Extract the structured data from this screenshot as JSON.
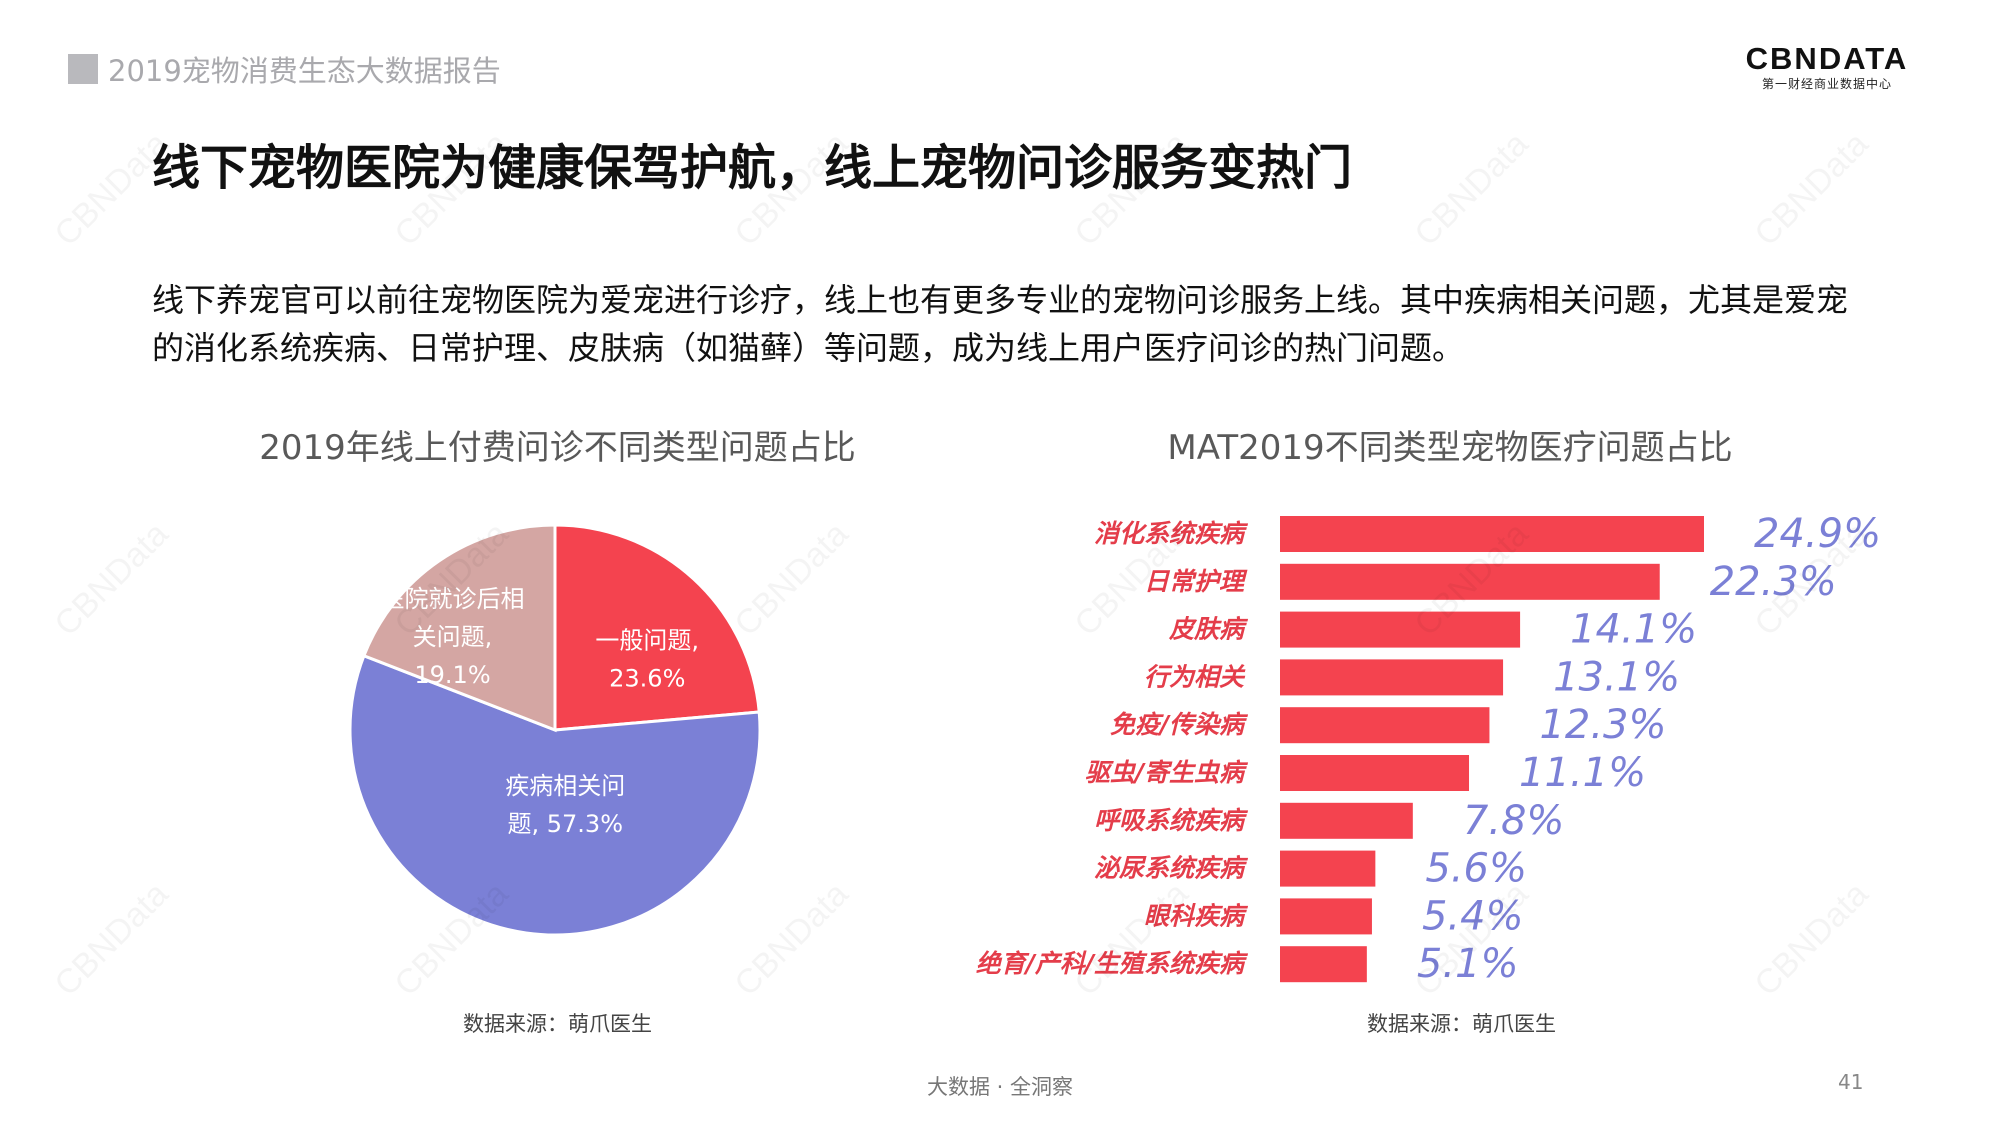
{
  "header": {
    "report_tag": "2019宠物消费生态大数据报告",
    "logo_brand": "CBNDATA",
    "logo_sub": "第一财经商业数据中心"
  },
  "title": "线下宠物医院为健康保驾护航，线上宠物问诊服务变热门",
  "intro": "线下养宠官可以前往宠物医院为爱宠进行诊疗，线上也有更多专业的宠物问诊服务上线。其中疾病相关问题，尤其是爱宠的消化系统疾病、日常护理、皮肤病（如猫藓）等问题，成为线上用户医疗问诊的热门问题。",
  "watermark": "CBNData",
  "footer": {
    "slogan": "大数据 · 全洞察",
    "page": "41"
  },
  "colors": {
    "pie": [
      "#f4434f",
      "#7b80d6",
      "#d4a6a3"
    ],
    "bar": "#f4434f",
    "bar_label": "#7b80d6",
    "category": "#e43d4a"
  },
  "chart_data": [
    {
      "type": "pie",
      "title": "2019年线上付费问诊不同类型问题占比",
      "source": "数据来源：萌爪医生",
      "slices": [
        {
          "label_lines": [
            "一般问题,",
            "23.6%"
          ],
          "value": 23.6
        },
        {
          "label_lines": [
            "疾病相关问",
            "题, 57.3%"
          ],
          "value": 57.3
        },
        {
          "label_lines": [
            "医院就诊后相",
            "关问题,",
            "19.1%"
          ],
          "value": 19.1
        }
      ],
      "start_angle_deg": 0,
      "direction": "clockwise"
    },
    {
      "type": "bar",
      "orientation": "horizontal",
      "title": "MAT2019不同类型宠物医疗问题占比",
      "source": "数据来源：萌爪医生",
      "categories": [
        "消化系统疾病",
        "日常护理",
        "皮肤病",
        "行为相关",
        "免疫/传染病",
        "驱虫/寄生虫病",
        "呼吸系统疾病",
        "泌尿系统疾病",
        "眼科疾病",
        "绝育/产科/生殖系统疾病"
      ],
      "values": [
        24.9,
        22.3,
        14.1,
        13.1,
        12.3,
        11.1,
        7.8,
        5.6,
        5.4,
        5.1
      ],
      "value_labels": [
        "24.9%",
        "22.3%",
        "14.1%",
        "13.1%",
        "12.3%",
        "11.1%",
        "7.8%",
        "5.6%",
        "5.4%",
        "5.1%"
      ],
      "xlim": [
        0,
        30
      ]
    }
  ]
}
